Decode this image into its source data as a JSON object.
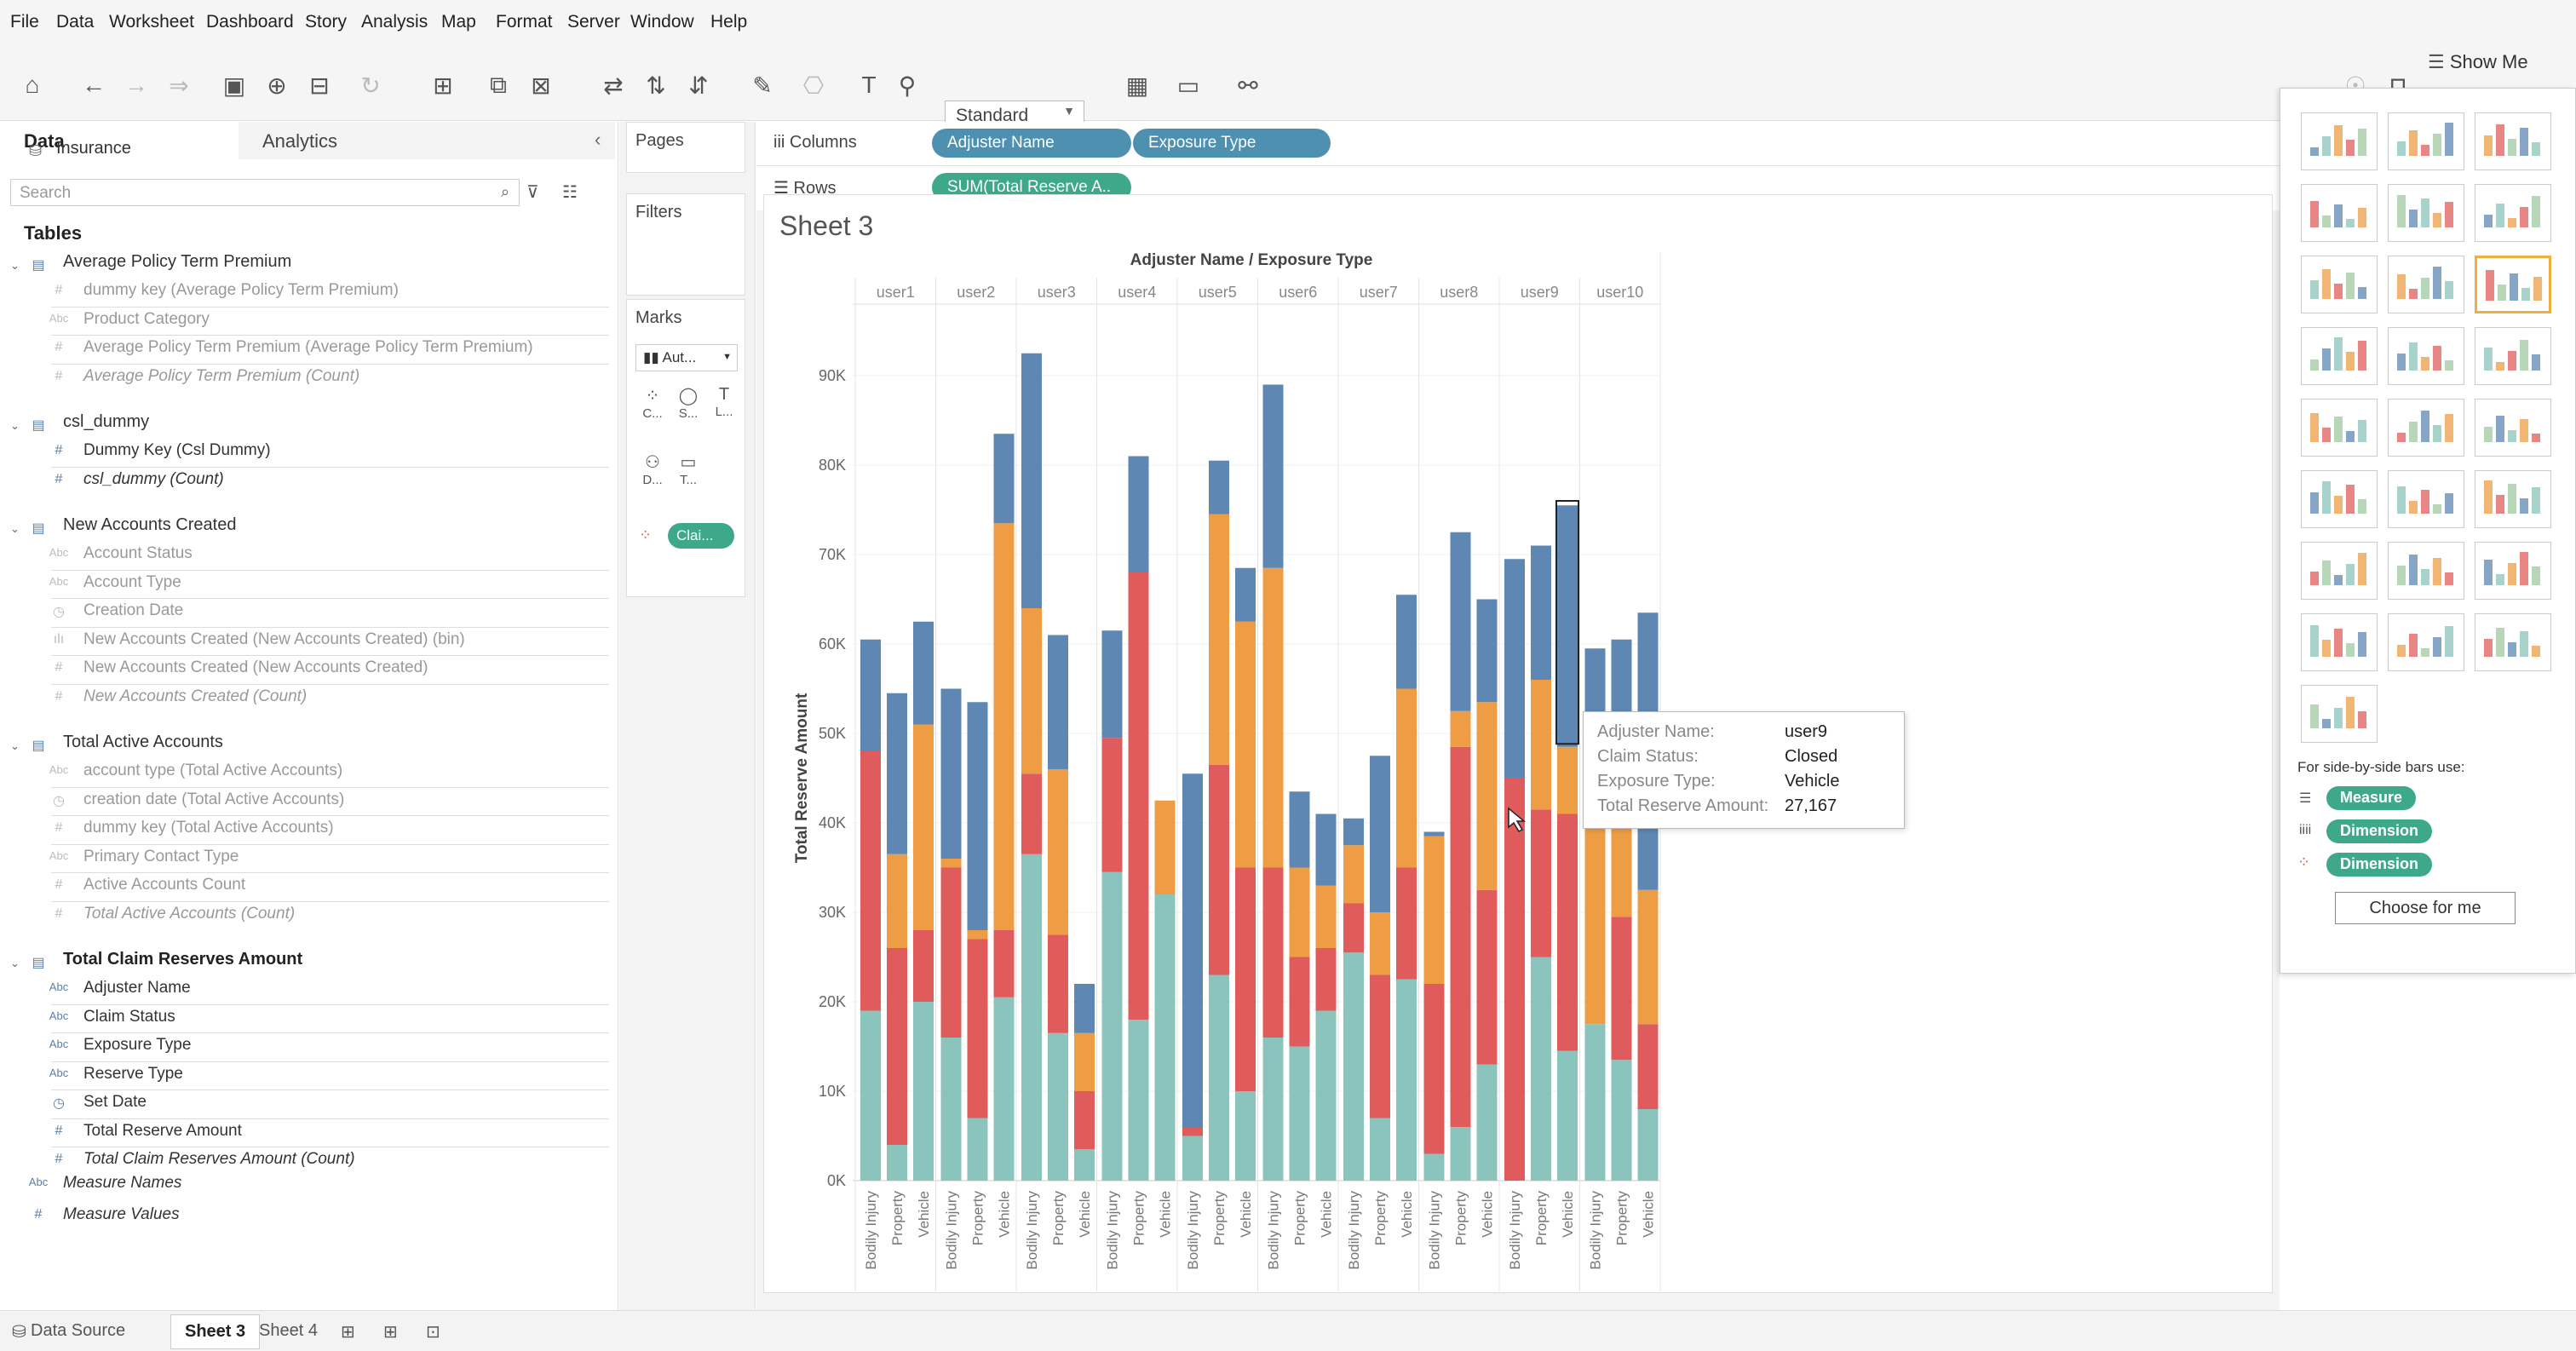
{
  "menu": [
    "File",
    "Data",
    "Worksheet",
    "Dashboard",
    "Story",
    "Analysis",
    "Map",
    "Format",
    "Server",
    "Window",
    "Help"
  ],
  "toolbar": {
    "fit_select": "Standard",
    "show_me": "Show Me"
  },
  "left": {
    "tab_data": "Data",
    "tab_analytics": "Analytics",
    "datasource": "Insurance",
    "search_placeholder": "Search",
    "tables_label": "Tables",
    "groups": [
      {
        "name": "Average Policy Term Premium",
        "fields": [
          {
            "icon": "#",
            "label": "dummy key (Average Policy Term Premium)",
            "style": "dim"
          },
          {
            "icon": "Abc",
            "label": "Product Category",
            "style": "dim"
          },
          {
            "icon": "#",
            "label": "Average Policy Term Premium (Average Policy Term Premium)",
            "style": "dim"
          },
          {
            "icon": "#",
            "label": "Average Policy Term Premium (Count)",
            "style": "dim-it"
          }
        ]
      },
      {
        "name": "csl_dummy",
        "fields": [
          {
            "icon": "#",
            "label": "Dummy Key (Csl Dummy)",
            "style": "dark"
          },
          {
            "icon": "#",
            "label": "csl_dummy (Count)",
            "style": "dark-it"
          }
        ]
      },
      {
        "name": "New Accounts Created",
        "fields": [
          {
            "icon": "Abc",
            "label": "Account Status",
            "style": "dim"
          },
          {
            "icon": "Abc",
            "label": "Account Type",
            "style": "dim"
          },
          {
            "icon": "cal",
            "label": "Creation Date",
            "style": "dim"
          },
          {
            "icon": "bin",
            "label": "New Accounts Created (New Accounts Created) (bin)",
            "style": "dim"
          },
          {
            "icon": "#",
            "label": "New Accounts Created (New Accounts Created)",
            "style": "dim"
          },
          {
            "icon": "#",
            "label": "New Accounts Created (Count)",
            "style": "dim-it"
          }
        ]
      },
      {
        "name": "Total Active Accounts",
        "fields": [
          {
            "icon": "Abc",
            "label": "account type (Total Active Accounts)",
            "style": "dim"
          },
          {
            "icon": "cal",
            "label": "creation date (Total Active Accounts)",
            "style": "dim"
          },
          {
            "icon": "#",
            "label": "dummy key (Total Active Accounts)",
            "style": "dim"
          },
          {
            "icon": "Abc",
            "label": "Primary Contact Type",
            "style": "dim"
          },
          {
            "icon": "#",
            "label": "Active Accounts Count",
            "style": "dim"
          },
          {
            "icon": "#",
            "label": "Total Active Accounts (Count)",
            "style": "dim-it"
          }
        ]
      },
      {
        "name": "Total Claim Reserves Amount",
        "fields": [
          {
            "icon": "Abc",
            "label": "Adjuster Name",
            "style": "dark"
          },
          {
            "icon": "Abc",
            "label": "Claim Status",
            "style": "dark"
          },
          {
            "icon": "Abc",
            "label": "Exposure Type",
            "style": "dark"
          },
          {
            "icon": "Abc",
            "label": "Reserve Type",
            "style": "dark"
          },
          {
            "icon": "cal",
            "label": "Set Date",
            "style": "dark"
          },
          {
            "icon": "#",
            "label": "Total Reserve Amount",
            "style": "dark"
          },
          {
            "icon": "#",
            "label": "Total Claim Reserves Amount (Count)",
            "style": "dark-it"
          }
        ]
      }
    ],
    "measure_names": "Measure Names",
    "measure_values": "Measure Values"
  },
  "shelves": {
    "pages": "Pages",
    "filters": "Filters",
    "marks": "Marks",
    "marks_type": "Aut...",
    "marks_buttons": [
      "C...",
      "S...",
      "L...",
      "D...",
      "T..."
    ],
    "marks_pill": "Clai...",
    "columns_label": "Columns",
    "rows_label": "Rows",
    "columns_pills": [
      "Adjuster Name",
      "Exposure Type"
    ],
    "rows_pill": "SUM(Total Reserve A..",
    "sheet_title": "Sheet 3"
  },
  "chart_data": {
    "type": "bar",
    "stacked": true,
    "header": "Adjuster Name / Exposure Type",
    "ylabel": "Total Reserve Amount",
    "ylim": [
      0,
      95000
    ],
    "yticks": [
      "0K",
      "10K",
      "20K",
      "30K",
      "40K",
      "50K",
      "60K",
      "70K",
      "80K",
      "90K"
    ],
    "groups": [
      "user1",
      "user2",
      "user3",
      "user4",
      "user5",
      "user6",
      "user7",
      "user8",
      "user9",
      "user10"
    ],
    "subcategories": [
      "Bodily Injury",
      "Property",
      "Vehicle"
    ],
    "colors": {
      "teal": "#8bc4bc",
      "red": "#e05c5c",
      "orange": "#ee9d45",
      "blue": "#5f87b3"
    },
    "series_order": [
      "teal",
      "red",
      "orange",
      "blue"
    ],
    "bars": [
      [
        19,
        48,
        0,
        60.5
      ],
      [
        4,
        26,
        36.5,
        54.5
      ],
      [
        20,
        28,
        51,
        62.5
      ],
      [
        16,
        35,
        36,
        55
      ],
      [
        7,
        27,
        28,
        53.5
      ],
      [
        20.5,
        28,
        73.5,
        83.5
      ],
      [
        36.5,
        45.5,
        64,
        92.5
      ],
      [
        16.5,
        27.5,
        46,
        61
      ],
      [
        3.5,
        10,
        16.5,
        22
      ],
      [
        34.5,
        49.5,
        0,
        61.5
      ],
      [
        18,
        68,
        0,
        81
      ],
      [
        32,
        0,
        42.5,
        42.5
      ],
      [
        5,
        6,
        0,
        45.5
      ],
      [
        23,
        46.5,
        74.5,
        80.5
      ],
      [
        10,
        35,
        62.5,
        68.5
      ],
      [
        16,
        35,
        68.5,
        89
      ],
      [
        15,
        25,
        35,
        43.5
      ],
      [
        19,
        26,
        33,
        41
      ],
      [
        25.5,
        31,
        37.5,
        40.5
      ],
      [
        7,
        23,
        30,
        47.5
      ],
      [
        22.5,
        35,
        55,
        65.5
      ],
      [
        3,
        22,
        38.5,
        39
      ],
      [
        6,
        48.5,
        52.5,
        72.5
      ],
      [
        13,
        32.5,
        53.5,
        65
      ],
      [
        0,
        45,
        42.5,
        69.5
      ],
      [
        25,
        41.5,
        56,
        71
      ],
      [
        14.5,
        41,
        48.5,
        75.5
      ],
      [
        17.5,
        0,
        43.5,
        59.5
      ],
      [
        13.5,
        29.5,
        40,
        60.5
      ],
      [
        8,
        17.5,
        32.5,
        63.5
      ]
    ]
  },
  "tooltip": {
    "rows": [
      {
        "k": "Adjuster Name:",
        "v": "user9"
      },
      {
        "k": "Claim Status:",
        "v": "Closed"
      },
      {
        "k": "Exposure Type:",
        "v": "Vehicle"
      },
      {
        "k": "Total Reserve Amount:",
        "v": "27,167"
      }
    ]
  },
  "showme": {
    "hint": "For side-by-side bars use:",
    "pills": [
      "Measure",
      "Dimension",
      "Dimension"
    ],
    "choose": "Choose for me"
  },
  "bottom": {
    "datasource": "Data Source",
    "sheet3": "Sheet 3",
    "sheet4": "Sheet 4"
  }
}
